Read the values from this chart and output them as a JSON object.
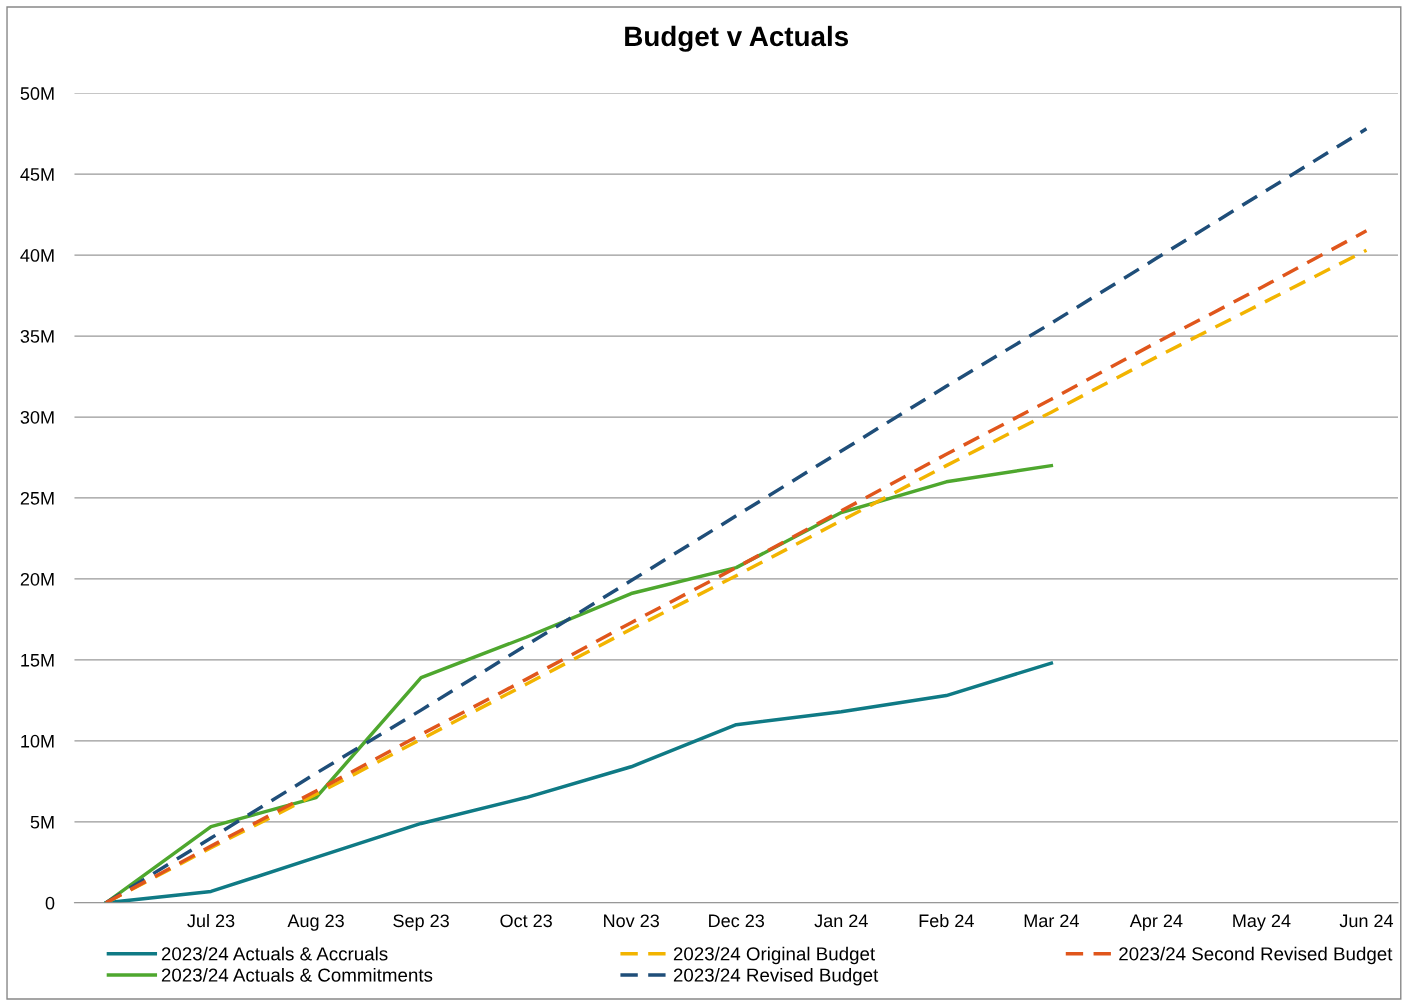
{
  "chart_data": {
    "type": "line",
    "title": "Budget v Actuals",
    "categories": [
      null,
      "Jul 23",
      "Aug 23",
      "Sep 23",
      "Oct 23",
      "Nov 23",
      "Dec 23",
      "Jan 24",
      "Feb 24",
      "Mar 24",
      "Apr 24",
      "May 24",
      "Jun 24"
    ],
    "series": [
      {
        "name": "2023/24 Actuals & Accruals",
        "color": "#0f7a85",
        "line_style": "solid",
        "values": [
          0,
          0.7,
          2.8,
          4.9,
          6.5,
          8.4,
          11.0,
          11.8,
          12.8,
          14.8,
          null,
          null,
          null
        ]
      },
      {
        "name": "2023/24 Actuals & Commitments",
        "color": "#4ea72e",
        "line_style": "solid",
        "values": [
          0,
          4.7,
          6.5,
          13.9,
          16.4,
          19.1,
          20.7,
          24.1,
          26.0,
          27.0,
          null,
          null,
          null
        ]
      },
      {
        "name": "2023/24 Original Budget",
        "color": "#f2b400",
        "line_style": "dashed",
        "values": [
          0,
          3.4,
          6.7,
          10.1,
          13.5,
          16.9,
          20.2,
          23.6,
          27.0,
          30.3,
          33.7,
          37.0,
          40.3
        ]
      },
      {
        "name": "2023/24 Revised Budget",
        "color": "#1f4e79",
        "line_style": "dashed",
        "values": [
          0,
          4.0,
          8.0,
          11.9,
          15.9,
          19.9,
          23.9,
          27.9,
          31.9,
          35.8,
          39.8,
          43.8,
          47.8
        ]
      },
      {
        "name": "2023/24 Second Revised Budget",
        "color": "#e0561c",
        "line_style": "dashed",
        "values": [
          0,
          3.5,
          6.9,
          10.4,
          13.8,
          17.3,
          20.7,
          24.2,
          27.7,
          31.1,
          34.6,
          38.0,
          41.5
        ]
      }
    ],
    "ylim": [
      0,
      50
    ],
    "yticks": [
      0,
      {
        "value": 5,
        "label": "5M"
      },
      {
        "value": 10,
        "label": "10M"
      },
      {
        "value": 15,
        "label": "15M"
      },
      {
        "value": 20,
        "label": "20M"
      },
      {
        "value": 25,
        "label": "25M"
      },
      {
        "value": 30,
        "label": "30M"
      },
      {
        "value": 35,
        "label": "35M"
      },
      {
        "value": 40,
        "label": "40M"
      },
      {
        "value": 45,
        "label": "45M"
      },
      {
        "value": 50,
        "label": "50M"
      }
    ],
    "grid": "y",
    "legend": "bottom"
  }
}
